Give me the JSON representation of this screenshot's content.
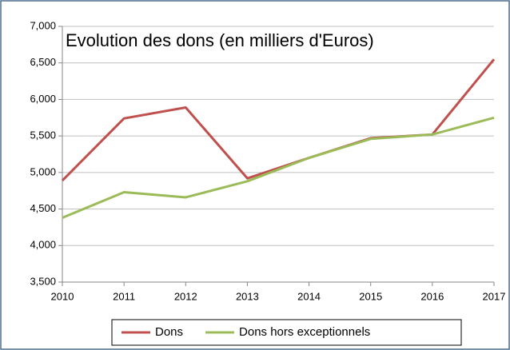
{
  "chart_data": {
    "type": "line",
    "title": "Evolution des dons (en milliers d'Euros)",
    "x": [
      2010,
      2011,
      2012,
      2013,
      2014,
      2015,
      2016,
      2017
    ],
    "xlim": [
      2010,
      2017
    ],
    "xticks": [
      2010,
      2011,
      2012,
      2013,
      2014,
      2015,
      2016,
      2017
    ],
    "ylim": [
      3500,
      7000
    ],
    "yticks": [
      {
        "value": 3500,
        "label": "3,500"
      },
      {
        "value": 4000,
        "label": "4,000"
      },
      {
        "value": 4500,
        "label": "4,500"
      },
      {
        "value": 5000,
        "label": "5,000"
      },
      {
        "value": 5500,
        "label": "5,500"
      },
      {
        "value": 6000,
        "label": "6,000"
      },
      {
        "value": 6500,
        "label": "6,500"
      },
      {
        "value": 7000,
        "label": "7,000"
      }
    ],
    "grid": true,
    "legend": "bottom",
    "series": [
      {
        "name": "Dons",
        "color": "#c0504d",
        "values": [
          4890,
          5740,
          5890,
          4920,
          5200,
          5470,
          5520,
          6550
        ]
      },
      {
        "name": "Dons hors exceptionnels",
        "color": "#9bbb59",
        "values": [
          4380,
          4730,
          4660,
          4880,
          5200,
          5460,
          5520,
          5750
        ]
      }
    ]
  }
}
